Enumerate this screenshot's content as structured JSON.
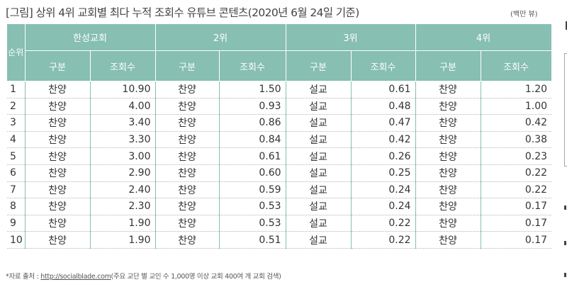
{
  "title": "[그림] 상위 4위 교회별 최다 누적 조회수 유튜브 콘텐츠(2020년 6월 24일 기준)",
  "unit": "(백만 뷰)",
  "table": {
    "rank_header": "순위",
    "group_headers": [
      "한성교회",
      "2위",
      "3위",
      "4위"
    ],
    "sub_headers": [
      "구분",
      "조회수",
      "구분",
      "조회수",
      "구분",
      "조회수",
      "구분",
      "조회수"
    ],
    "rows": [
      [
        "1",
        "찬양",
        "10.90",
        "찬양",
        "1.50",
        "설교",
        "0.61",
        "찬양",
        "1.20"
      ],
      [
        "2",
        "찬양",
        "4.00",
        "찬양",
        "0.93",
        "설교",
        "0.48",
        "찬양",
        "1.00"
      ],
      [
        "3",
        "찬양",
        "3.40",
        "찬양",
        "0.86",
        "설교",
        "0.47",
        "찬양",
        "0.42"
      ],
      [
        "4",
        "찬양",
        "3.30",
        "찬양",
        "0.84",
        "설교",
        "0.42",
        "찬양",
        "0.38"
      ],
      [
        "5",
        "찬양",
        "3.00",
        "찬양",
        "0.61",
        "설교",
        "0.26",
        "찬양",
        "0.23"
      ],
      [
        "6",
        "찬양",
        "2.90",
        "찬양",
        "0.60",
        "설교",
        "0.25",
        "찬양",
        "0.22"
      ],
      [
        "7",
        "찬양",
        "2.40",
        "찬양",
        "0.59",
        "설교",
        "0.24",
        "찬양",
        "0.22"
      ],
      [
        "8",
        "찬양",
        "2.30",
        "찬양",
        "0.53",
        "설교",
        "0.24",
        "찬양",
        "0.17"
      ],
      [
        "9",
        "찬양",
        "1.90",
        "찬양",
        "0.53",
        "설교",
        "0.22",
        "찬양",
        "0.17"
      ],
      [
        "10",
        "찬양",
        "1.90",
        "찬양",
        "0.51",
        "설교",
        "0.22",
        "찬양",
        "0.17"
      ]
    ]
  },
  "footnote": {
    "prefix": "*자료 출처 : ",
    "link": "http://socialblade.com",
    "suffix": "(주요 교단 별 교인 수 1,000명 이상 교회 400여 개 교회 검색)"
  },
  "colors": {
    "header_bg": "#87bfb2",
    "header_text": "#ffffff"
  }
}
